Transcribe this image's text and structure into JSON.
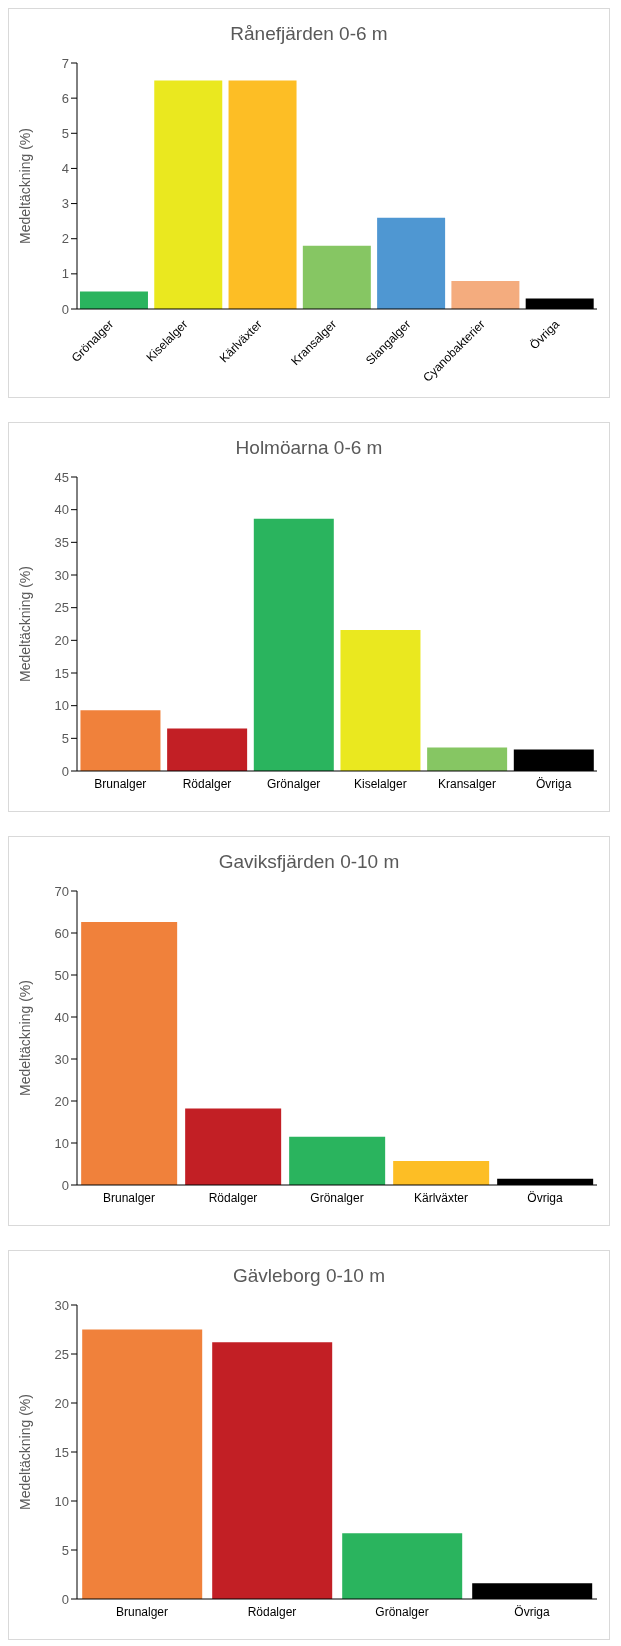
{
  "chart_data": [
    {
      "type": "bar",
      "title": "Rånefjärden 0-6 m",
      "ylabel": "Medeltäckning (%)",
      "categories": [
        "Grönalger",
        "Kiselalger",
        "Kärlväxter",
        "Kransalger",
        "Slangalger",
        "Cyanobakterier",
        "Övriga"
      ],
      "values": [
        0.5,
        6.5,
        6.5,
        1.8,
        2.6,
        0.8,
        0.3
      ],
      "colors": [
        "#2ab45e",
        "#eae81f",
        "#fdbe25",
        "#86c663",
        "#4f97d2",
        "#f4ac7e",
        "#000000"
      ],
      "ylim": [
        0,
        7
      ],
      "yticks": [
        0,
        1,
        2,
        3,
        4,
        5,
        6,
        7
      ]
    },
    {
      "type": "bar",
      "title": "Holmöarna 0-6 m",
      "ylabel": "Medeltäckning (%)",
      "categories": [
        "Brunalger",
        "Rödalger",
        "Grönalger",
        "Kiselalger",
        "Kransalger",
        "Övriga"
      ],
      "values": [
        9.3,
        6.5,
        38.6,
        21.6,
        3.6,
        3.3
      ],
      "colors": [
        "#f0813b",
        "#c21f25",
        "#2ab45e",
        "#eae81f",
        "#86c663",
        "#000000"
      ],
      "ylim": [
        0,
        45
      ],
      "yticks": [
        0,
        5,
        10,
        15,
        20,
        25,
        30,
        35,
        40,
        45
      ]
    },
    {
      "type": "bar",
      "title": "Gaviksfjärden 0-10 m",
      "ylabel": "Medeltäckning (%)",
      "categories": [
        "Brunalger",
        "Rödalger",
        "Grönalger",
        "Kärlväxter",
        "Övriga"
      ],
      "values": [
        62.6,
        18.2,
        11.5,
        5.7,
        1.5
      ],
      "colors": [
        "#f0813b",
        "#c21f25",
        "#2ab45e",
        "#fdbe25",
        "#000000"
      ],
      "ylim": [
        0,
        70
      ],
      "yticks": [
        0,
        10,
        20,
        30,
        40,
        50,
        60,
        70
      ]
    },
    {
      "type": "bar",
      "title": "Gävleborg 0-10 m",
      "ylabel": "Medeltäckning (%)",
      "categories": [
        "Brunalger",
        "Rödalger",
        "Grönalger",
        "Övriga"
      ],
      "values": [
        27.5,
        26.2,
        6.7,
        1.6
      ],
      "colors": [
        "#f0813b",
        "#c21f25",
        "#2ab45e",
        "#000000"
      ],
      "ylim": [
        0,
        30
      ],
      "yticks": [
        0,
        5,
        10,
        15,
        20,
        25,
        30
      ]
    }
  ]
}
